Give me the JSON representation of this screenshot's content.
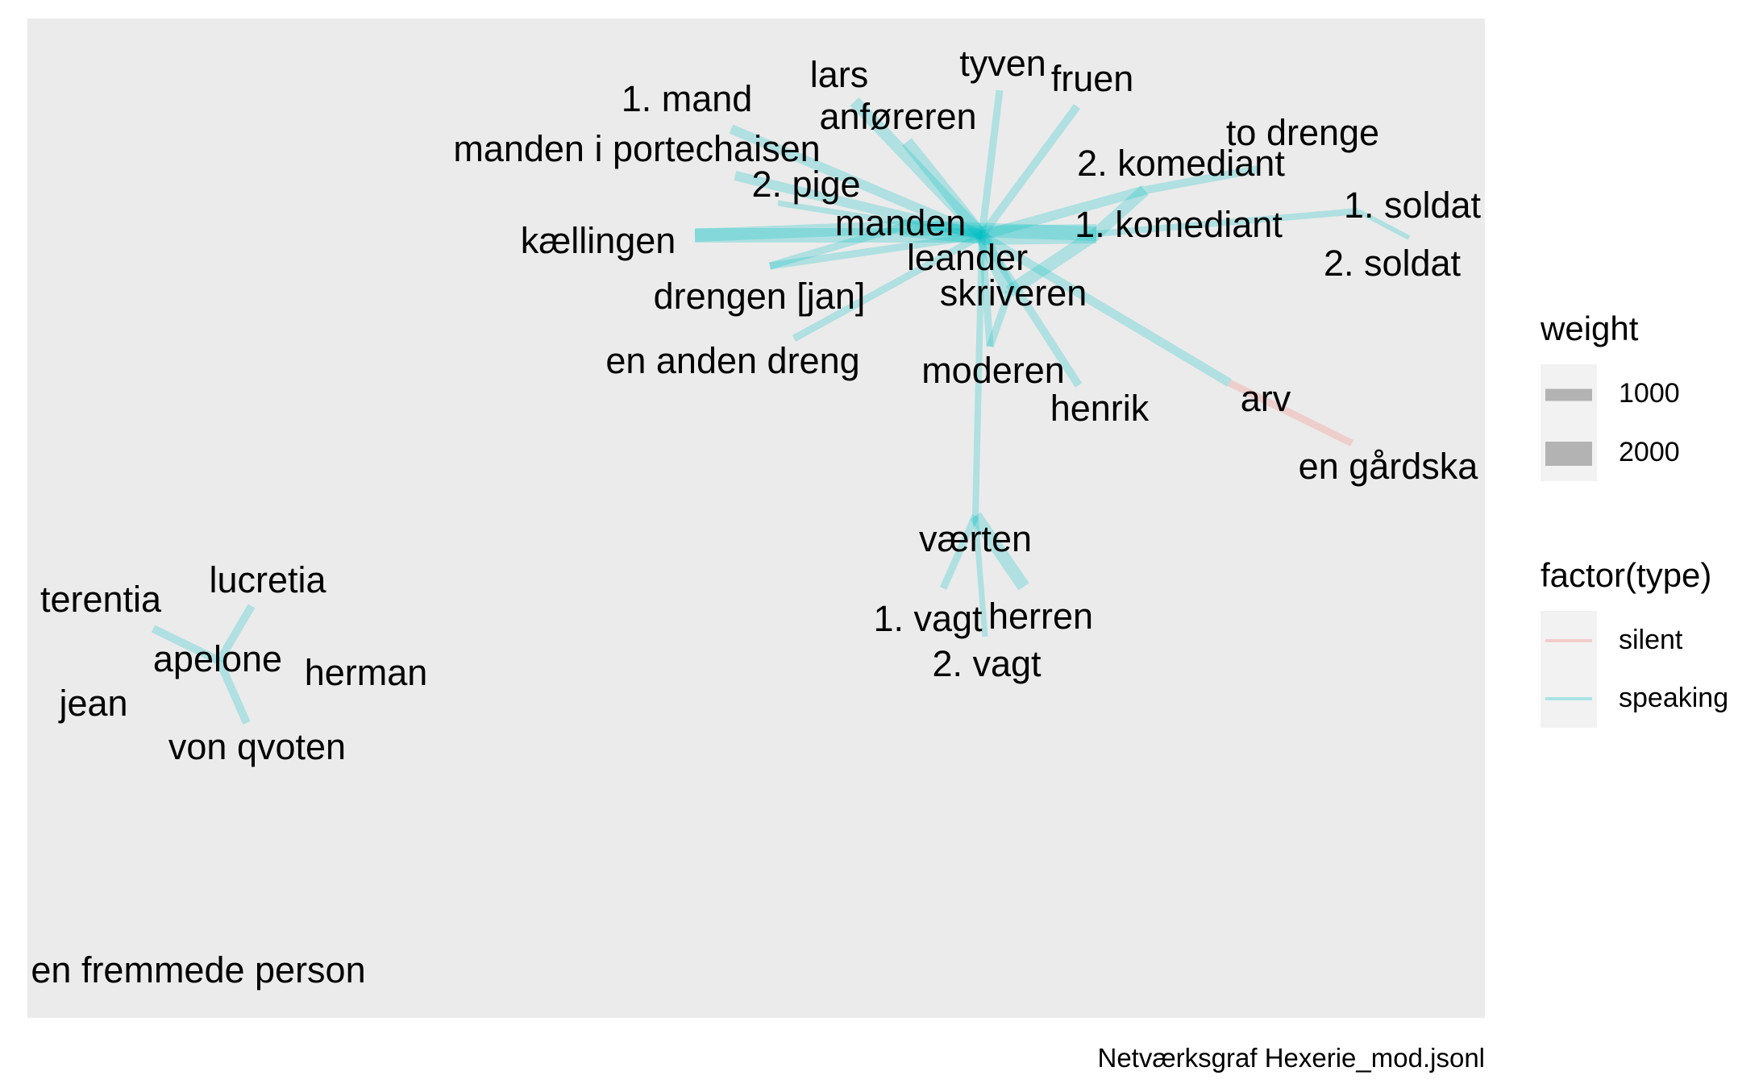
{
  "caption": "Netværksgraf Hexerie_mod.jsonl",
  "legend": {
    "weight_title": "weight",
    "weight_items": [
      {
        "label": "1000",
        "weight": 1000
      },
      {
        "label": "2000",
        "weight": 2000
      }
    ],
    "type_title": "factor(type)",
    "type_items": [
      {
        "label": "silent",
        "color": "#F8766D"
      },
      {
        "label": "speaking",
        "color": "#00BFC4"
      }
    ]
  },
  "colors": {
    "panel": "#EBEBEB",
    "silent": "#F8766D",
    "speaking": "#00BFC4",
    "legend_key_fill": "#B3B3B3",
    "legend_key_bg": "#F2F2F2"
  },
  "nodes": [
    {
      "id": "leander",
      "label": "leander"
    },
    {
      "id": "manden",
      "label": "manden"
    },
    {
      "id": "skriveren",
      "label": "skriveren"
    },
    {
      "id": "1. komediant",
      "label": "1. komediant"
    },
    {
      "id": "2. komediant",
      "label": "2. komediant"
    },
    {
      "id": "to drenge",
      "label": "to drenge"
    },
    {
      "id": "1. soldat",
      "label": "1. soldat"
    },
    {
      "id": "2. soldat",
      "label": "2. soldat"
    },
    {
      "id": "tyven",
      "label": "tyven"
    },
    {
      "id": "fruen",
      "label": "fruen"
    },
    {
      "id": "lars",
      "label": "lars"
    },
    {
      "id": "anføreren",
      "label": "anføreren"
    },
    {
      "id": "1. mand",
      "label": "1. mand"
    },
    {
      "id": "manden i portechaisen",
      "label": "manden i portechaisen"
    },
    {
      "id": "2. pige",
      "label": "2. pige"
    },
    {
      "id": "kællingen",
      "label": "kællingen"
    },
    {
      "id": "drengen [jan]",
      "label": "drengen [jan]"
    },
    {
      "id": "en anden dreng",
      "label": "en anden dreng"
    },
    {
      "id": "moderen",
      "label": "moderen"
    },
    {
      "id": "henrik",
      "label": "henrik"
    },
    {
      "id": "arv",
      "label": "arv"
    },
    {
      "id": "en gårdskarl",
      "label": "en gårdska"
    },
    {
      "id": "værten",
      "label": "værten"
    },
    {
      "id": "1. vagt",
      "label": "1. vagt"
    },
    {
      "id": "herren",
      "label": "herren"
    },
    {
      "id": "2. vagt",
      "label": "2. vagt"
    },
    {
      "id": "terentia",
      "label": "terentia"
    },
    {
      "id": "lucretia",
      "label": "lucretia"
    },
    {
      "id": "apelone",
      "label": "apelone"
    },
    {
      "id": "herman",
      "label": "herman"
    },
    {
      "id": "jean",
      "label": "jean"
    },
    {
      "id": "von qvoten",
      "label": "von qvoten"
    },
    {
      "id": "en fremmede person",
      "label": "en fremmede person"
    }
  ],
  "edges": [
    {
      "source": "leander",
      "target": "kællingen",
      "weight": 1800,
      "type": "speaking"
    },
    {
      "source": "leander",
      "target": "lars",
      "weight": 1500,
      "type": "speaking"
    },
    {
      "source": "leander",
      "target": "anføreren",
      "weight": 1500,
      "type": "speaking"
    },
    {
      "source": "leander",
      "target": "tyven",
      "weight": 900,
      "type": "speaking"
    },
    {
      "source": "leander",
      "target": "fruen",
      "weight": 1000,
      "type": "speaking"
    },
    {
      "source": "leander",
      "target": "1. mand",
      "weight": 1200,
      "type": "speaking"
    },
    {
      "source": "leander",
      "target": "manden i portechaisen",
      "weight": 1200,
      "type": "speaking"
    },
    {
      "source": "leander",
      "target": "2. pige",
      "weight": 700,
      "type": "speaking"
    },
    {
      "source": "leander",
      "target": "manden",
      "weight": 2200,
      "type": "speaking"
    },
    {
      "source": "leander",
      "target": "skriveren",
      "weight": 1800,
      "type": "speaking"
    },
    {
      "source": "leander",
      "target": "1. komediant",
      "weight": 2400,
      "type": "speaking"
    },
    {
      "source": "leander",
      "target": "2. komediant",
      "weight": 1200,
      "type": "speaking"
    },
    {
      "source": "leander",
      "target": "moderen",
      "weight": 900,
      "type": "speaking"
    },
    {
      "source": "leander",
      "target": "henrik",
      "weight": 1000,
      "type": "speaking"
    },
    {
      "source": "leander",
      "target": "arv",
      "weight": 1100,
      "type": "speaking"
    },
    {
      "source": "leander",
      "target": "værten",
      "weight": 800,
      "type": "speaking"
    },
    {
      "source": "leander",
      "target": "drengen [jan]",
      "weight": 900,
      "type": "speaking"
    },
    {
      "source": "leander",
      "target": "en anden dreng",
      "weight": 900,
      "type": "speaking"
    },
    {
      "source": "manden",
      "target": "kællingen",
      "weight": 1600,
      "type": "speaking"
    },
    {
      "source": "manden",
      "target": "drengen [jan]",
      "weight": 900,
      "type": "speaking"
    },
    {
      "source": "manden",
      "target": "1. komediant",
      "weight": 1800,
      "type": "speaking"
    },
    {
      "source": "skriveren",
      "target": "1. komediant",
      "weight": 1600,
      "type": "speaking"
    },
    {
      "source": "skriveren",
      "target": "moderen",
      "weight": 900,
      "type": "speaking"
    },
    {
      "source": "1. komediant",
      "target": "2. komediant",
      "weight": 1500,
      "type": "speaking"
    },
    {
      "source": "2. komediant",
      "target": "to drenge",
      "weight": 1000,
      "type": "speaking"
    },
    {
      "source": "1. komediant",
      "target": "1. soldat",
      "weight": 800,
      "type": "speaking"
    },
    {
      "source": "1. soldat",
      "target": "2. soldat",
      "weight": 600,
      "type": "speaking"
    },
    {
      "source": "arv",
      "target": "en gårdskarl",
      "weight": 900,
      "type": "silent"
    },
    {
      "source": "værten",
      "target": "herren",
      "weight": 1600,
      "type": "speaking"
    },
    {
      "source": "værten",
      "target": "1. vagt",
      "weight": 900,
      "type": "speaking"
    },
    {
      "source": "værten",
      "target": "2. vagt",
      "weight": 700,
      "type": "speaking"
    },
    {
      "source": "apelone",
      "target": "lucretia",
      "weight": 1000,
      "type": "speaking"
    },
    {
      "source": "apelone",
      "target": "terentia",
      "weight": 1000,
      "type": "speaking"
    },
    {
      "source": "apelone",
      "target": "von qvoten",
      "weight": 1000,
      "type": "speaking"
    }
  ]
}
